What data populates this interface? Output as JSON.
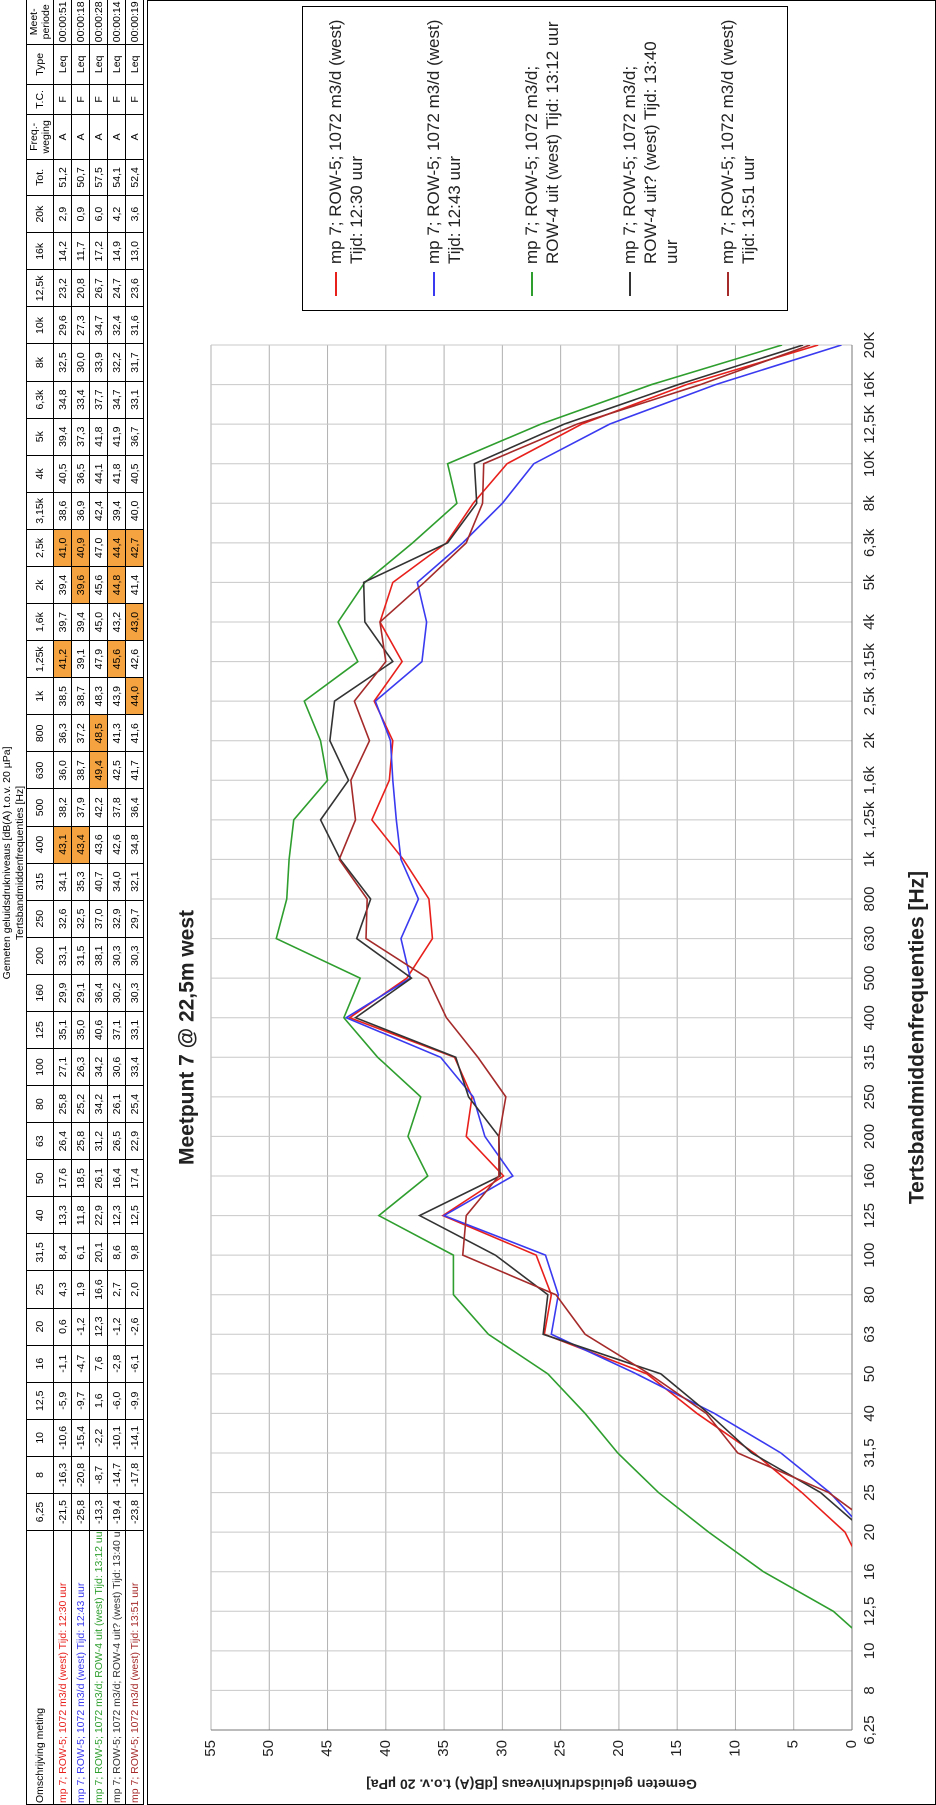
{
  "table": {
    "title": "Gemeten geluidsdrukniveaus [dB(A) t.o.v. 20 µPa]",
    "subtitle": "Tertsbandmiddenfrequenties [Hz]",
    "description_header": "Omschrijving meting",
    "frequency_headers": [
      "6,25",
      "8",
      "10",
      "12,5",
      "16",
      "20",
      "25",
      "31,5",
      "40",
      "50",
      "63",
      "80",
      "100",
      "125",
      "160",
      "200",
      "250",
      "315",
      "400",
      "500",
      "630",
      "800",
      "1k",
      "1,25k",
      "1,6k",
      "2k",
      "2,5k",
      "3,15k",
      "4k",
      "5k",
      "6,3k",
      "8k",
      "10k",
      "12,5k",
      "16k",
      "20k"
    ],
    "extra_headers": [
      "Tot.",
      "Freq.-weging",
      "T.C.",
      "Type",
      "Meet-periode"
    ],
    "extra_rows": [
      [
        "51,2",
        "A",
        "F",
        "Leq",
        "00:00:51"
      ],
      [
        "50,7",
        "A",
        "F",
        "Leq",
        "00:00:18"
      ],
      [
        "57,5",
        "A",
        "F",
        "Leq",
        "00:00:28"
      ],
      [
        "54,1",
        "A",
        "F",
        "Leq",
        "00:00:14"
      ],
      [
        "52,4",
        "A",
        "F",
        "Leq",
        "00:00:19"
      ]
    ]
  },
  "chart_data": {
    "type": "line",
    "title": "Meetpunt 7 @ 22,5m west",
    "x_label": "Tertsbandmiddenfrequenties [Hz]",
    "y_label": "Gemeten geluidsdrukniveaus [dB(A) t.o.v. 20 µPa]",
    "categories": [
      "6,25",
      "8",
      "10",
      "12,5",
      "16",
      "20",
      "25",
      "31,5",
      "40",
      "50",
      "63",
      "80",
      "100",
      "125",
      "160",
      "200",
      "250",
      "315",
      "400",
      "500",
      "630",
      "800",
      "1k",
      "1,25k",
      "1,6k",
      "2k",
      "2,5k",
      "3,15k",
      "4k",
      "5k",
      "6,3k",
      "8k",
      "10K",
      "12,5K",
      "16K",
      "20K"
    ],
    "ylim": [
      0,
      55
    ],
    "yticks": [
      0,
      5,
      10,
      15,
      20,
      25,
      30,
      35,
      40,
      45,
      50,
      55
    ],
    "grid": true,
    "legend": "right",
    "series": [
      {
        "name": "mp 7; ROW-5; 1072 m3/d (west) Tijd: 12:30 uur",
        "color": "#e8201c",
        "values": [
          -21.5,
          -16.3,
          -10.6,
          -5.9,
          -1.1,
          0.6,
          4.3,
          8.4,
          13.3,
          17.6,
          26.4,
          25.8,
          27.1,
          35.1,
          29.9,
          33.1,
          32.6,
          34.1,
          43.1,
          38.2,
          36.0,
          36.3,
          38.5,
          41.2,
          39.7,
          39.4,
          41.0,
          38.6,
          40.5,
          39.4,
          34.8,
          32.5,
          29.6,
          23.2,
          14.2,
          2.9
        ],
        "value_labels": [
          "-21,5",
          "-16,3",
          "-10,6",
          "-5,9",
          "-1,1",
          "0,6",
          "4,3",
          "8,4",
          "13,3",
          "17,6",
          "26,4",
          "25,8",
          "27,1",
          "35,1",
          "29,9",
          "33,1",
          "32,6",
          "34,1",
          "43,1",
          "38,2",
          "36,0",
          "36,3",
          "38,5",
          "41,2",
          "39,7",
          "39,4",
          "41,0",
          "38,6",
          "40,5",
          "39,4",
          "34,8",
          "32,5",
          "29,6",
          "23,2",
          "14,2",
          "2,9"
        ]
      },
      {
        "name": "mp 7; ROW-5; 1072 m3/d (west) Tijd: 12:43 uur",
        "color": "#3a3af0",
        "values": [
          -25.8,
          -20.8,
          -15.4,
          -9.7,
          -4.7,
          -1.2,
          1.9,
          6.1,
          11.8,
          18.5,
          25.8,
          25.2,
          26.3,
          35.0,
          29.1,
          31.5,
          32.5,
          35.3,
          43.4,
          37.9,
          38.7,
          37.2,
          38.7,
          39.1,
          39.4,
          39.6,
          40.9,
          36.9,
          36.5,
          37.3,
          33.4,
          30.0,
          27.3,
          20.8,
          11.7,
          0.9
        ],
        "value_labels": [
          "-25,8",
          "-20,8",
          "-15,4",
          "-9,7",
          "-4,7",
          "-1,2",
          "1,9",
          "6,1",
          "11,8",
          "18,5",
          "25,8",
          "25,2",
          "26,3",
          "35,0",
          "29,1",
          "31,5",
          "32,5",
          "35,3",
          "43,4",
          "37,9",
          "38,7",
          "37,2",
          "38,7",
          "39,1",
          "39,4",
          "39,6",
          "40,9",
          "36,9",
          "36,5",
          "37,3",
          "33,4",
          "30,0",
          "27,3",
          "20,8",
          "11,7",
          "0,9"
        ]
      },
      {
        "name": "mp 7; ROW-5; 1072 m3/d; ROW-4 uit (west) Tijd: 13:12 uur",
        "color": "#2e9e2e",
        "values": [
          -13.3,
          -8.7,
          -2.2,
          1.6,
          7.6,
          12.3,
          16.6,
          20.1,
          22.9,
          26.1,
          31.2,
          34.2,
          34.2,
          40.6,
          36.4,
          38.1,
          37.0,
          40.7,
          43.6,
          42.2,
          49.4,
          48.5,
          48.3,
          47.9,
          45.0,
          45.6,
          47.0,
          42.4,
          44.1,
          41.8,
          37.7,
          33.9,
          34.7,
          26.7,
          17.2,
          6.0
        ],
        "value_labels": [
          "-13,3",
          "-8,7",
          "-2,2",
          "1,6",
          "7,6",
          "12,3",
          "16,6",
          "20,1",
          "22,9",
          "26,1",
          "31,2",
          "34,2",
          "34,2",
          "40,6",
          "36,4",
          "38,1",
          "37,0",
          "40,7",
          "43,6",
          "42,2",
          "49,4",
          "48,5",
          "48,3",
          "47,9",
          "45,0",
          "45,6",
          "47,0",
          "42,4",
          "44,1",
          "41,8",
          "37,7",
          "33,9",
          "34,7",
          "26,7",
          "17,2",
          "6,0"
        ]
      },
      {
        "name": "mp 7; ROW-5; 1072 m3/d; ROW-4 uit? (west) Tijd: 13:40 uur",
        "color": "#333333",
        "values": [
          -19.4,
          -14.7,
          -10.1,
          -6.0,
          -2.8,
          -1.2,
          2.7,
          8.6,
          12.3,
          16.4,
          26.5,
          26.1,
          30.6,
          37.1,
          30.2,
          30.3,
          32.9,
          34.0,
          42.6,
          37.8,
          42.5,
          41.3,
          43.9,
          45.6,
          43.2,
          44.8,
          44.4,
          39.4,
          41.8,
          41.9,
          34.7,
          32.2,
          32.4,
          24.7,
          14.9,
          4.2
        ],
        "value_labels": [
          "-19,4",
          "-14,7",
          "-10,1",
          "-6,0",
          "-2,8",
          "-1,2",
          "2,7",
          "8,6",
          "12,3",
          "16,4",
          "26,5",
          "26,1",
          "30,6",
          "37,1",
          "30,2",
          "30,3",
          "32,9",
          "34,0",
          "42,6",
          "37,8",
          "42,5",
          "41,3",
          "43,9",
          "45,6",
          "43,2",
          "44,8",
          "44,4",
          "39,4",
          "41,8",
          "41,9",
          "34,7",
          "32,2",
          "32,4",
          "24,7",
          "14,9",
          "4,2"
        ]
      },
      {
        "name": "mp 7; ROW-5; 1072 m3/d (west) Tijd: 13:51 uur",
        "color": "#a52a2a",
        "values": [
          -23.8,
          -17.8,
          -14.1,
          -9.9,
          -6.1,
          -2.6,
          2.0,
          9.8,
          12.5,
          17.4,
          22.9,
          25.4,
          33.4,
          33.1,
          30.3,
          30.3,
          29.7,
          32.1,
          34.8,
          36.4,
          41.7,
          41.6,
          44.0,
          42.6,
          43.0,
          41.4,
          42.7,
          40.0,
          40.5,
          36.7,
          33.1,
          31.7,
          31.6,
          23.6,
          13.0,
          3.6
        ],
        "value_labels": [
          "-23,8",
          "-17,8",
          "-14,1",
          "-9,9",
          "-6,1",
          "-2,6",
          "2,0",
          "9,8",
          "12,5",
          "17,4",
          "22,9",
          "25,4",
          "33,4",
          "33,1",
          "30,3",
          "30,3",
          "29,7",
          "32,1",
          "34,8",
          "36,4",
          "41,7",
          "41,6",
          "44,0",
          "42,6",
          "43,0",
          "41,4",
          "42,7",
          "40,0",
          "40,5",
          "36,7",
          "33,1",
          "31,7",
          "31,6",
          "23,6",
          "13,0",
          "3,6"
        ]
      }
    ]
  }
}
